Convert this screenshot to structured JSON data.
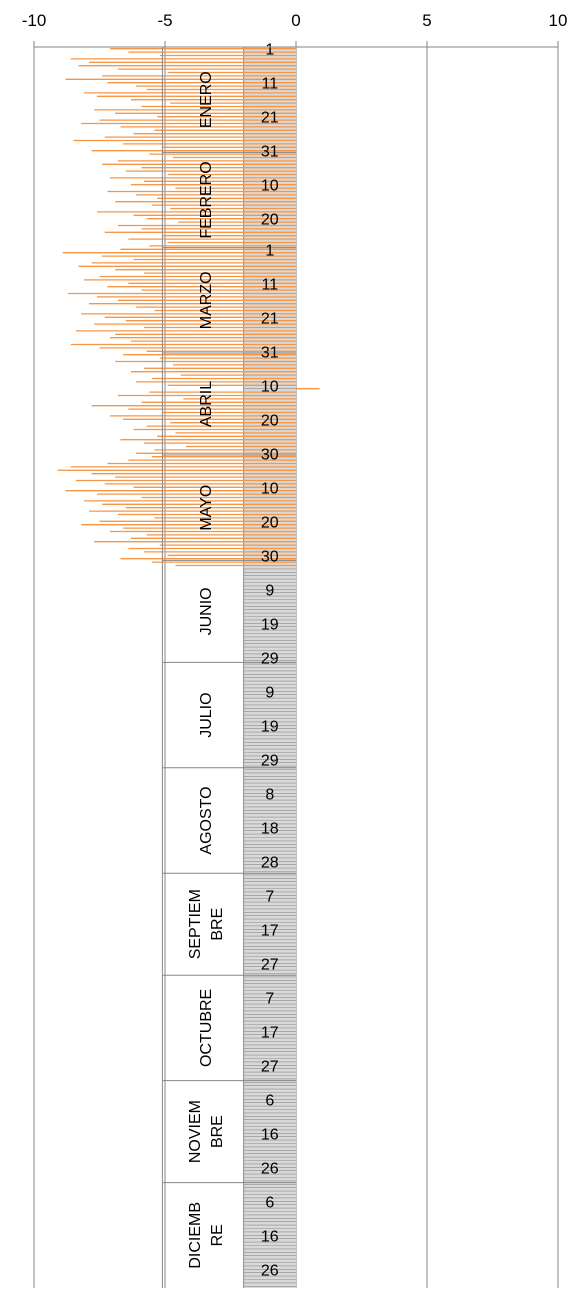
{
  "chart_data": {
    "type": "bar",
    "orientation": "horizontal",
    "title": "",
    "xlabel": "",
    "ylabel": "",
    "xlim": [
      -10,
      10
    ],
    "x_ticks": [
      "-10",
      "-5",
      "0",
      "5",
      "10"
    ],
    "x_tick_values": [
      -10,
      -5,
      0,
      5,
      10
    ],
    "grid": true,
    "legend": "none",
    "month_labels": [
      {
        "text": "ENERO",
        "start_day": 1,
        "days": 31
      },
      {
        "text": "FEBRERO",
        "start_day": 32,
        "days": 28
      },
      {
        "text": "MARZO",
        "start_day": 60,
        "days": 31
      },
      {
        "text": "ABRIL",
        "start_day": 91,
        "days": 30
      },
      {
        "text": "MAYO",
        "start_day": 121,
        "days": 31
      },
      {
        "text": "JUNIO",
        "start_day": 152,
        "days": 30
      },
      {
        "text": "JULIO",
        "start_day": 182,
        "days": 31
      },
      {
        "text": "AGOSTO",
        "start_day": 213,
        "days": 31
      },
      {
        "text": "SEPTIEM|BRE",
        "start_day": 244,
        "days": 30
      },
      {
        "text": "OCTUBRE",
        "start_day": 274,
        "days": 31
      },
      {
        "text": "NOVIEM|BRE",
        "start_day": 305,
        "days": 30
      },
      {
        "text": "DICIEMB|RE",
        "start_day": 335,
        "days": 31
      }
    ],
    "day_labels": [
      {
        "text": "1",
        "day": 1
      },
      {
        "text": "11",
        "day": 11
      },
      {
        "text": "21",
        "day": 21
      },
      {
        "text": "31",
        "day": 31
      },
      {
        "text": "10",
        "day": 41
      },
      {
        "text": "20",
        "day": 51
      },
      {
        "text": "1",
        "day": 60
      },
      {
        "text": "11",
        "day": 70
      },
      {
        "text": "21",
        "day": 80
      },
      {
        "text": "31",
        "day": 90
      },
      {
        "text": "10",
        "day": 100
      },
      {
        "text": "20",
        "day": 110
      },
      {
        "text": "30",
        "day": 120
      },
      {
        "text": "10",
        "day": 130
      },
      {
        "text": "20",
        "day": 140
      },
      {
        "text": "30",
        "day": 150
      },
      {
        "text": "9",
        "day": 160
      },
      {
        "text": "19",
        "day": 170
      },
      {
        "text": "29",
        "day": 180
      },
      {
        "text": "9",
        "day": 190
      },
      {
        "text": "19",
        "day": 200
      },
      {
        "text": "29",
        "day": 210
      },
      {
        "text": "8",
        "day": 220
      },
      {
        "text": "18",
        "day": 230
      },
      {
        "text": "28",
        "day": 240
      },
      {
        "text": "7",
        "day": 250
      },
      {
        "text": "17",
        "day": 260
      },
      {
        "text": "27",
        "day": 270
      },
      {
        "text": "7",
        "day": 280
      },
      {
        "text": "17",
        "day": 290
      },
      {
        "text": "27",
        "day": 300
      },
      {
        "text": "6",
        "day": 310
      },
      {
        "text": "16",
        "day": 320
      },
      {
        "text": "26",
        "day": 330
      },
      {
        "text": "6",
        "day": 340
      },
      {
        "text": "16",
        "day": 350
      },
      {
        "text": "26",
        "day": 360
      }
    ],
    "series": [
      {
        "color": "#f79646",
        "values": [
          -7.1,
          -6.4,
          -5.2,
          -8.6,
          -7.9,
          -8.3,
          -6.8,
          -4.9,
          -7.4,
          -8.8,
          -7.2,
          -6.1,
          -5.7,
          -8.1,
          -7.6,
          -6.3,
          -4.8,
          -5.9,
          -7.7,
          -6.9,
          -5.3,
          -7.5,
          -8.2,
          -6.7,
          -5.4,
          -6.2,
          -7.3,
          -8.5,
          -6.6,
          -5.1,
          -7.8,
          -5.6,
          -4.7,
          -6.8,
          -7.4,
          -5.9,
          -6.5,
          -4.9,
          -7.1,
          -5.8,
          -6.3,
          -4.6,
          -7.2,
          -6.1,
          -5.3,
          -6.9,
          -5.5,
          -4.8,
          -7.6,
          -6.2,
          -5.7,
          -4.5,
          -6.8,
          -5.9,
          -7.3,
          -5.1,
          -6.4,
          -4.9,
          -5.6,
          -6.7,
          -8.9,
          -7.4,
          -6.2,
          -7.8,
          -8.3,
          -6.9,
          -5.8,
          -7.5,
          -8.1,
          -6.4,
          -7.2,
          -5.9,
          -8.7,
          -7.6,
          -6.8,
          -7.9,
          -6.1,
          -5.4,
          -8.2,
          -7.3,
          -6.5,
          -7.7,
          -5.8,
          -8.4,
          -6.9,
          -7.1,
          -6.3,
          -8.6,
          -7.5,
          -5.7,
          -6.6,
          -5.2,
          -6.9,
          -4.7,
          -5.8,
          -6.3,
          -4.4,
          -5.5,
          -6.1,
          -4.9,
          0.9,
          -5.6,
          -6.8,
          -4.3,
          -5.9,
          -7.8,
          -6.4,
          -5.1,
          -7.1,
          -6.6,
          -4.8,
          -5.7,
          -6.2,
          -4.6,
          -5.3,
          -6.7,
          -5.8,
          -4.2,
          -5.4,
          -6.1,
          -5.5,
          -6.4,
          -7.2,
          -8.6,
          -9.1,
          -7.8,
          -6.9,
          -8.4,
          -7.3,
          -6.2,
          -8.8,
          -7.6,
          -5.9,
          -8.1,
          -7.4,
          -6.5,
          -7.9,
          -6.8,
          -5.4,
          -7.5,
          -8.2,
          -6.6,
          -7.1,
          -5.7,
          -6.3,
          -7.7,
          -5.2,
          -6.4,
          -5.8,
          -4.9,
          -6.7,
          -5.5,
          -4.6
        ]
      }
    ]
  }
}
